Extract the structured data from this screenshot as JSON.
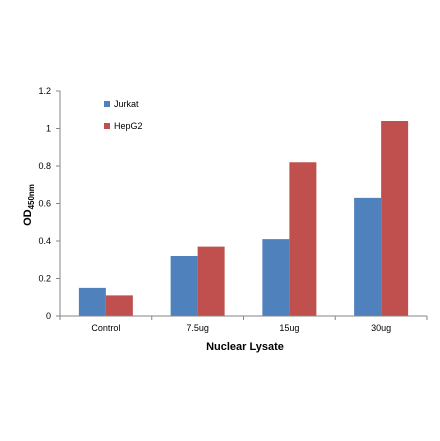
{
  "chart_data": {
    "type": "bar",
    "categories": [
      "Control",
      "7.5ug",
      "15ug",
      "30ug"
    ],
    "series": [
      {
        "name": "Jurkat",
        "values": [
          0.15,
          0.32,
          0.41,
          0.63
        ],
        "color": "#4F81BD"
      },
      {
        "name": "HepG2",
        "values": [
          0.11,
          0.37,
          0.82,
          1.04
        ],
        "color": "#C0504D"
      }
    ],
    "title": "",
    "xlabel": "Nuclear Lysate",
    "ylabel_main": "OD",
    "ylabel_sub": "450nm",
    "ylim": [
      0,
      1.2
    ],
    "yticks": [
      "0",
      "0.2",
      "0.4",
      "0.6",
      "0.8",
      "1",
      "1.2"
    ],
    "grid": false,
    "legend_position": "top-left"
  }
}
